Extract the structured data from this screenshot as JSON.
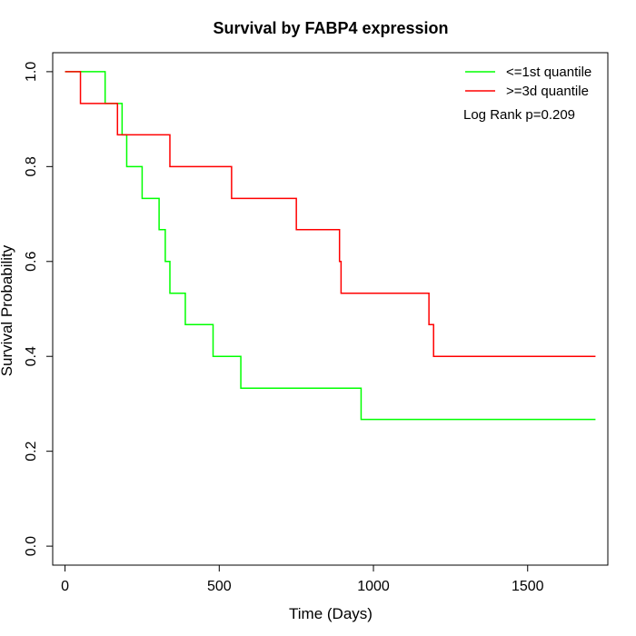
{
  "chart_data": {
    "type": "line",
    "title": "Survival by FABP4 expression",
    "xlabel": "Time (Days)",
    "ylabel": "Survival Probability",
    "xlim": [
      -40,
      1760
    ],
    "ylim": [
      -0.04,
      1.04
    ],
    "x_ticks": [
      0,
      500,
      1000,
      1500
    ],
    "y_ticks": [
      0.0,
      0.2,
      0.4,
      0.6,
      0.8,
      1.0
    ],
    "x_tick_labels": [
      "0",
      "500",
      "1000",
      "1500"
    ],
    "y_tick_labels": [
      "0.0",
      "0.2",
      "0.4",
      "0.6",
      "0.8",
      "1.0"
    ],
    "grid": false,
    "legend_position": "top-right",
    "annotation": "Log Rank p=0.209",
    "series": [
      {
        "name": "<=1st quantile",
        "color": "#00ff00",
        "step_points": [
          [
            0,
            1.0
          ],
          [
            130,
            0.933
          ],
          [
            185,
            0.867
          ],
          [
            200,
            0.8
          ],
          [
            250,
            0.733
          ],
          [
            305,
            0.667
          ],
          [
            325,
            0.6
          ],
          [
            340,
            0.533
          ],
          [
            390,
            0.467
          ],
          [
            480,
            0.4
          ],
          [
            570,
            0.333
          ],
          [
            960,
            0.267
          ],
          [
            1720,
            0.267
          ]
        ]
      },
      {
        "name": ">=3d quantile",
        "color": "#ff0000",
        "step_points": [
          [
            0,
            1.0
          ],
          [
            50,
            0.933
          ],
          [
            170,
            0.867
          ],
          [
            340,
            0.8
          ],
          [
            540,
            0.733
          ],
          [
            750,
            0.667
          ],
          [
            890,
            0.6
          ],
          [
            895,
            0.533
          ],
          [
            1180,
            0.467
          ],
          [
            1195,
            0.4
          ],
          [
            1720,
            0.4
          ]
        ]
      }
    ]
  }
}
